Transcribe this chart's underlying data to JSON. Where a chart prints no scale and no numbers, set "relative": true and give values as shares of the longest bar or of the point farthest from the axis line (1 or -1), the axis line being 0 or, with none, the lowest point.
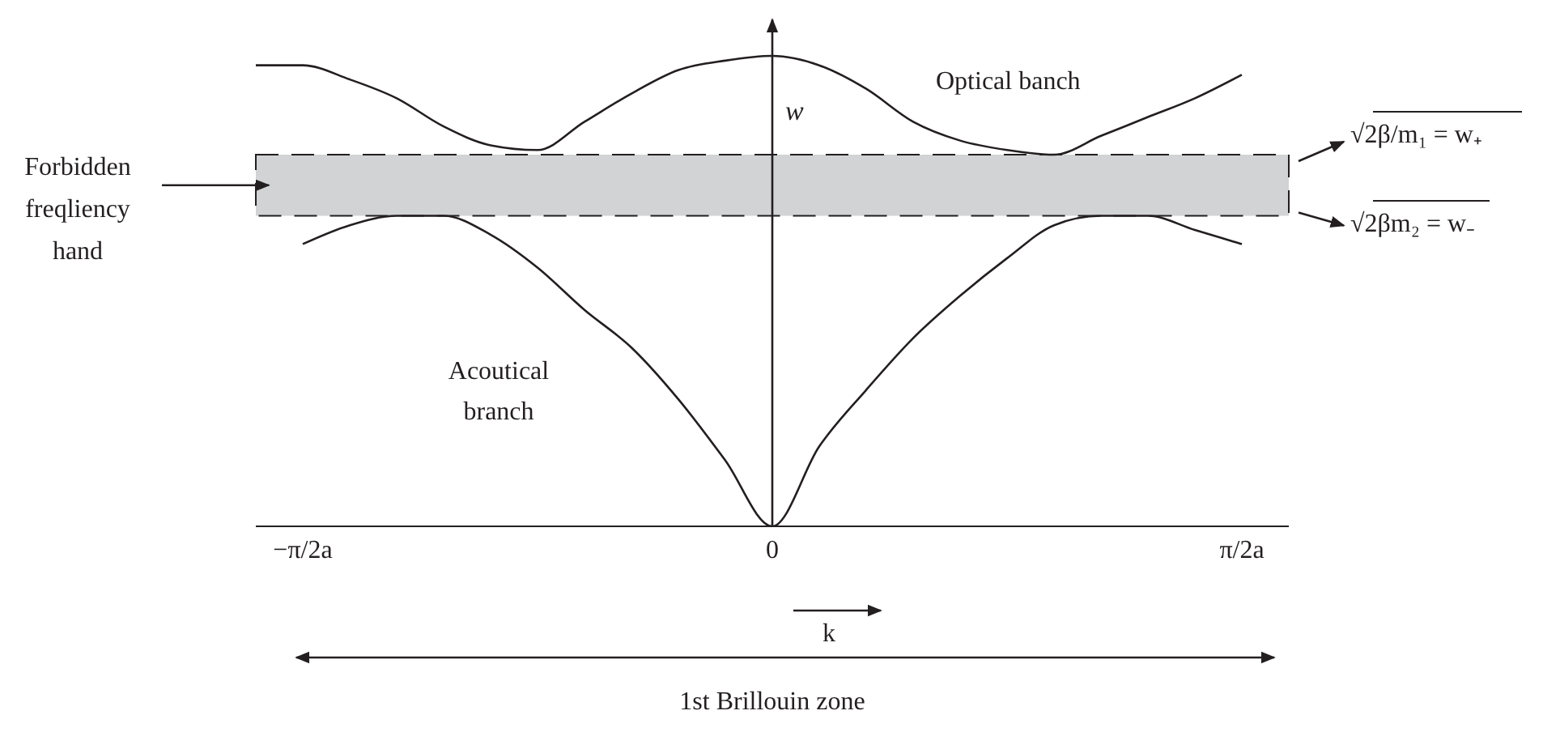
{
  "chart_data": {
    "type": "line",
    "relative": true,
    "xlabel": "k",
    "ylabel": "w",
    "marker": "none",
    "line_style": "solid",
    "categories": [
      null,
      "−π/2a",
      null,
      null,
      null,
      null,
      null,
      null,
      null,
      null,
      null,
      "0",
      null,
      null,
      null,
      null,
      null,
      null,
      null,
      null,
      null,
      "π/2a",
      null
    ],
    "series": [
      {
        "color": "#231f20",
        "values": [
          0.98,
          0.98,
          0.95,
          0.91,
          0.85,
          0.81,
          0.8,
          0.86,
          0.92,
          0.97,
          0.99,
          1.0,
          0.98,
          0.93,
          0.86,
          0.82,
          0.8,
          0.79,
          0.83,
          0.87,
          0.91,
          0.96,
          null
        ]
      },
      {
        "color": "#231f20",
        "values": [
          null,
          0.6,
          0.64,
          0.66,
          0.66,
          0.62,
          0.55,
          0.46,
          0.38,
          0.27,
          0.14,
          0,
          0.17,
          0.29,
          0.4,
          0.49,
          0.57,
          0.64,
          0.66,
          0.66,
          0.63,
          0.6,
          null
        ]
      }
    ],
    "bands": [
      {
        "axis": "y",
        "from": 0.66,
        "to": 0.79,
        "label": "Forbidden\nfreqliency\nhand",
        "color": "#d1d3d4"
      }
    ],
    "annotations": [
      "Optical banch",
      "Acoutical\nbranch",
      "√2β/m₁ = w₊",
      "√2βm₂ = w₋",
      "1st Brillouin zone"
    ]
  }
}
